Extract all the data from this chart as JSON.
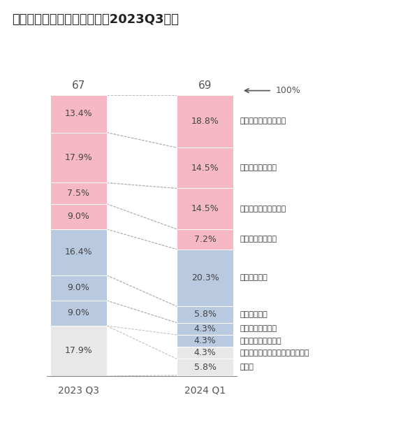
{
  "title": "売却検討・実施の理由（前回2023Q3比）",
  "col1_label": "2023 Q3",
  "col2_label": "2024 Q1",
  "col1_n": "67",
  "col2_n": "69",
  "categories": [
    "維持管理コストの削減",
    "遊休不動産の処分",
    "資産のオフバランス化",
    "有利子負債の圧縮",
    "建物の老朽化",
    "拠点の統廃合",
    "事業の縮小・撤退",
    "人員増減に伴う移転",
    "耐震リスク・違法性リスクの回避",
    "その他"
  ],
  "col1_values": [
    13.4,
    17.9,
    7.5,
    9.0,
    16.4,
    9.0,
    9.0,
    0.0,
    0.0,
    17.9
  ],
  "col2_values": [
    18.8,
    14.5,
    14.5,
    7.2,
    20.3,
    5.8,
    4.3,
    4.3,
    4.3,
    5.8
  ],
  "col1_colors": [
    "#F5B8C4",
    "#F5B8C4",
    "#F5B8C4",
    "#F5B8C4",
    "#B8C9E0",
    "#B8C9E0",
    "#B8C9E0",
    "#E8E8E8",
    "#E8E8E8",
    "#E8E8E8"
  ],
  "col2_colors": [
    "#F5B8C4",
    "#F5B8C4",
    "#F5B8C4",
    "#F5B8C4",
    "#B8C9E0",
    "#B8C9E0",
    "#B8C9E0",
    "#B8C9E0",
    "#E8E8E8",
    "#E8E8E8"
  ],
  "bg_color": "#FFFFFF",
  "arrow_label": "100%"
}
